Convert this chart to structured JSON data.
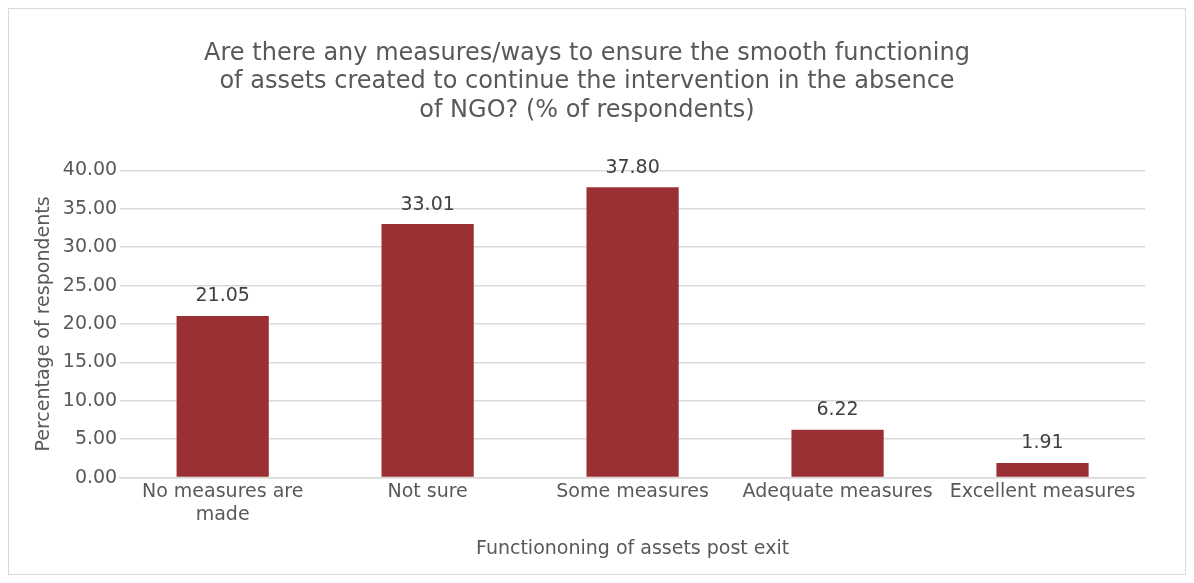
{
  "chart_data": {
    "type": "bar",
    "title": "Are there any measures/ways to ensure the smooth functioning of assets created to continue the intervention in the absence of NGO? (% of respondents)",
    "xlabel": "Functiononing of assets post exit",
    "ylabel": "Percentage of respondents",
    "categories": [
      "No measures are made",
      "Not sure",
      "Some measures",
      "Adequate measures",
      "Excellent measures"
    ],
    "values": [
      21.05,
      33.01,
      37.8,
      6.22,
      1.91
    ],
    "value_labels": [
      "21.05",
      "33.01",
      "37.80",
      "6.22",
      "1.91"
    ],
    "color": "#9b3034",
    "ylim": [
      0,
      40
    ],
    "yticks": [
      {
        "value": 0,
        "label": "0.00"
      },
      {
        "value": 5,
        "label": "5.00"
      },
      {
        "value": 10,
        "label": "10.00"
      },
      {
        "value": 15,
        "label": "15.00"
      },
      {
        "value": 20,
        "label": "20.00"
      },
      {
        "value": 25,
        "label": "25.00"
      },
      {
        "value": 30,
        "label": "30.00"
      },
      {
        "value": 35,
        "label": "35.00"
      },
      {
        "value": 40,
        "label": "40.00"
      }
    ],
    "grid": "y"
  }
}
